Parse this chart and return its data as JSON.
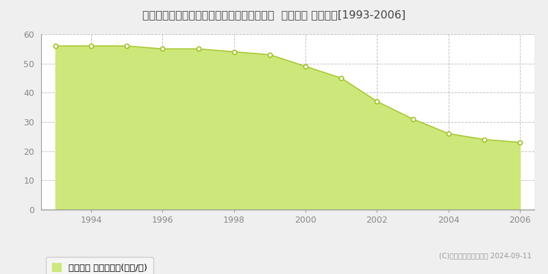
{
  "title": "兵庫県川辺郡猪名川町若葉１丁目３２番１３  地価公示 地価推移[1993-2006]",
  "years": [
    1993,
    1994,
    1995,
    1996,
    1997,
    1998,
    1999,
    2000,
    2001,
    2002,
    2003,
    2004,
    2005,
    2006
  ],
  "values": [
    56,
    56,
    56,
    55,
    55,
    54,
    53,
    49,
    45,
    37,
    31,
    26,
    24,
    23
  ],
  "fill_color": "#cce87a",
  "line_color": "#a8c830",
  "marker_color": "#ffffff",
  "marker_edge_color": "#a0c020",
  "background_color": "#efefef",
  "plot_bg_color": "#ffffff",
  "grid_color": "#bbbbbb",
  "title_color": "#444444",
  "tick_color": "#888888",
  "ylim": [
    0,
    60
  ],
  "yticks": [
    0,
    10,
    20,
    30,
    40,
    50,
    60
  ],
  "legend_label": "地価公示 平均坪単価(万円/坪)",
  "legend_marker_color": "#cce87a",
  "copyright_text": "(C)土地価格ドットコム 2024-09-11",
  "title_fontsize": 11.5,
  "tick_fontsize": 9,
  "legend_fontsize": 9.5
}
